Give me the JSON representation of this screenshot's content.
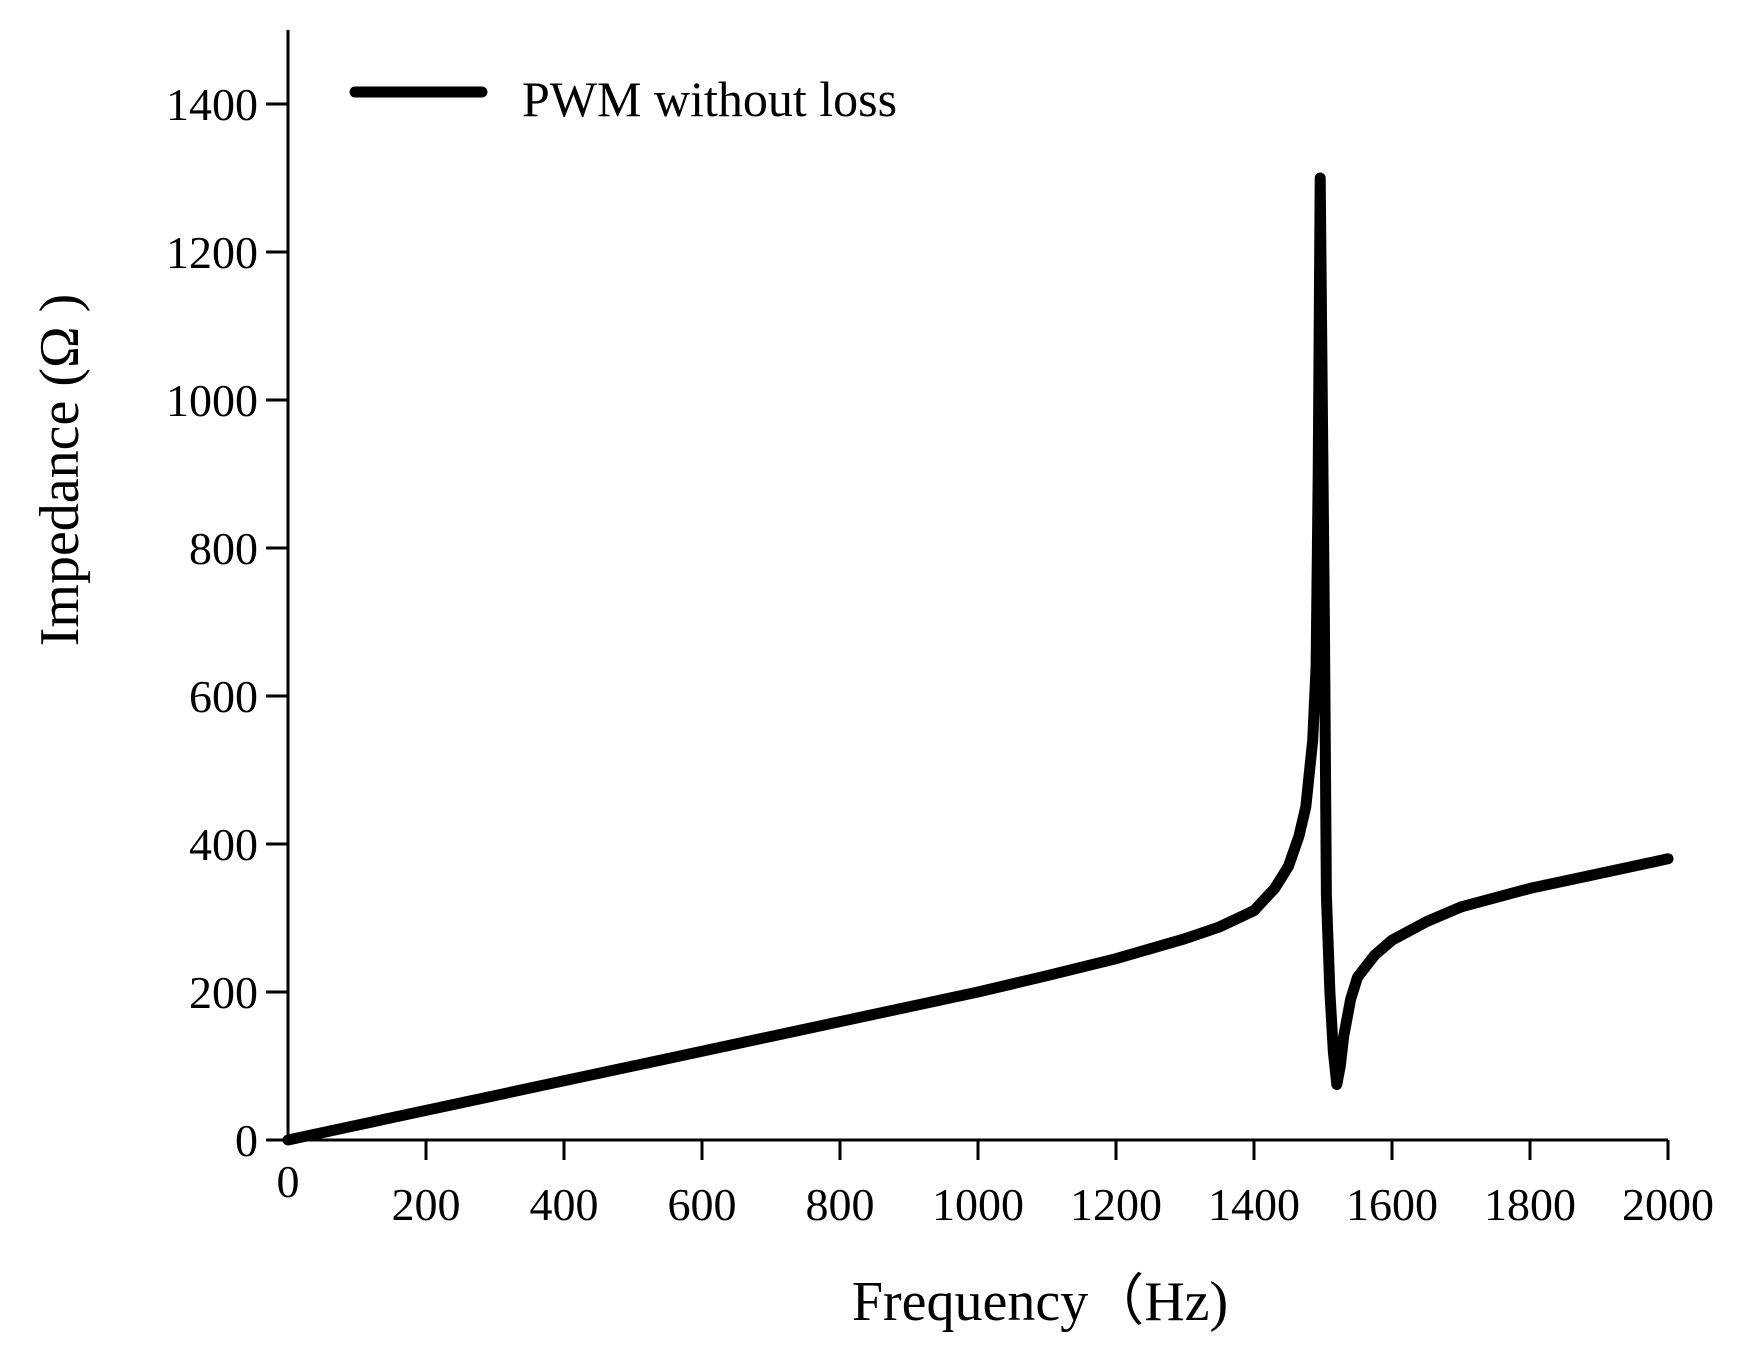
{
  "chart_data": {
    "type": "line",
    "title": "",
    "xlabel": "Frequency（Hz)",
    "ylabel": "Impedance (Ω )",
    "xlim": [
      0,
      2000
    ],
    "ylim": [
      0,
      1500
    ],
    "x_origin_label": "0",
    "y_origin_label": "0",
    "xticks": [
      {
        "value": 200,
        "label": "200"
      },
      {
        "value": 400,
        "label": "400"
      },
      {
        "value": 600,
        "label": "600"
      },
      {
        "value": 800,
        "label": "800"
      },
      {
        "value": 1000,
        "label": "1000"
      },
      {
        "value": 1200,
        "label": "1200"
      },
      {
        "value": 1400,
        "label": "1400"
      },
      {
        "value": 1600,
        "label": "1600"
      },
      {
        "value": 1800,
        "label": "1800"
      },
      {
        "value": 2000,
        "label": "2000"
      }
    ],
    "yticks": [
      {
        "value": 200,
        "label": "200"
      },
      {
        "value": 400,
        "label": "400"
      },
      {
        "value": 600,
        "label": "600"
      },
      {
        "value": 800,
        "label": "800"
      },
      {
        "value": 1000,
        "label": "1000"
      },
      {
        "value": 1200,
        "label": "1200"
      },
      {
        "value": 1400,
        "label": "1400"
      }
    ],
    "grid": false,
    "legend_position": "top-left",
    "series": [
      {
        "name": "PWM without loss",
        "color": "#000000",
        "x": [
          0,
          200,
          400,
          600,
          800,
          1000,
          1100,
          1200,
          1300,
          1350,
          1400,
          1430,
          1450,
          1465,
          1475,
          1485,
          1490,
          1493,
          1496,
          1499,
          1502,
          1505,
          1510,
          1515,
          1520,
          1525,
          1530,
          1540,
          1550,
          1575,
          1600,
          1650,
          1700,
          1800,
          1900,
          2000
        ],
        "y": [
          0,
          40,
          80,
          120,
          160,
          200,
          222,
          245,
          272,
          288,
          310,
          340,
          370,
          410,
          450,
          540,
          640,
          900,
          1300,
          1000,
          700,
          330,
          200,
          120,
          75,
          100,
          140,
          190,
          220,
          250,
          270,
          295,
          315,
          340,
          360,
          380
        ]
      }
    ]
  }
}
